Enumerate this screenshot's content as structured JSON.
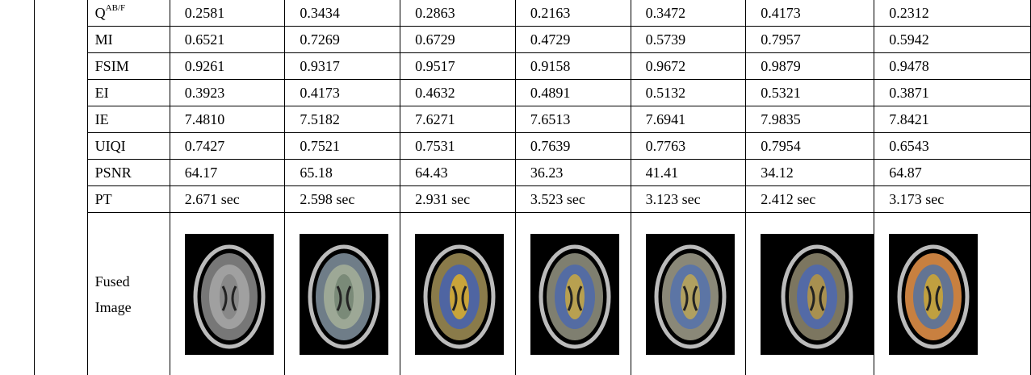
{
  "table": {
    "rows": [
      {
        "label": {
          "base": "Q",
          "sup": "AB/F"
        },
        "values": [
          "0.2581",
          "0.3434",
          "0.2863",
          "0.2163",
          "0.3472",
          "0.4173",
          "0.2312"
        ]
      },
      {
        "label": "MI",
        "values": [
          "0.6521",
          "0.7269",
          "0.6729",
          "0.4729",
          "0.5739",
          "0.7957",
          "0.5942"
        ]
      },
      {
        "label": "FSIM",
        "values": [
          "0.9261",
          "0.9317",
          "0.9517",
          "0.9158",
          "0.9672",
          "0.9879",
          "0.9478"
        ]
      },
      {
        "label": "EI",
        "values": [
          "0.3923",
          "0.4173",
          "0.4632",
          "0.4891",
          "0.5132",
          "0.5321",
          "0.3871"
        ]
      },
      {
        "label": "IE",
        "values": [
          "7.4810",
          "7.5182",
          "7.6271",
          "7.6513",
          "7.6941",
          "7.9835",
          "7.8421"
        ]
      },
      {
        "label": "UIQI",
        "values": [
          "0.7427",
          "0.7521",
          "0.7531",
          "0.7639",
          "0.7763",
          "0.7954",
          "0.6543"
        ]
      },
      {
        "label": "PSNR",
        "values": [
          "64.17",
          "65.18",
          "64.43",
          "36.23",
          "41.41",
          "34.12",
          "64.87"
        ]
      },
      {
        "label": "PT",
        "values": [
          "2.671 sec",
          "2.598 sec",
          "2.931 sec",
          "3.523 sec",
          "3.123 sec",
          "2.412 sec",
          "3.173 sec"
        ]
      }
    ],
    "image_row": {
      "label": "Fused Image"
    }
  }
}
